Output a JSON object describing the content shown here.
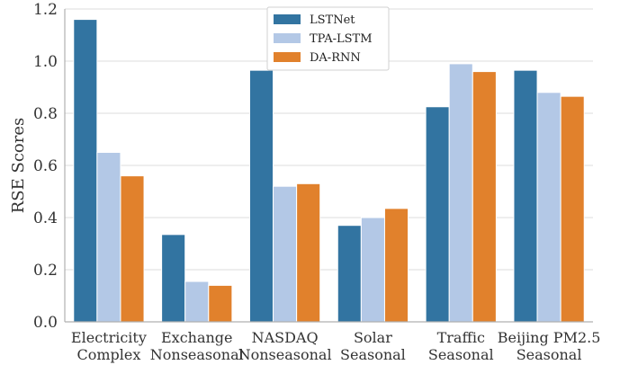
{
  "chart_data": {
    "type": "bar",
    "ylabel": "RSE Scores",
    "xlabel": "",
    "ylim": [
      0,
      1.2
    ],
    "yticks": [
      "0.0",
      "0.2",
      "0.4",
      "0.6",
      "0.8",
      "1.0",
      "1.2"
    ],
    "grid": "horizontal",
    "legend_position": "top-center",
    "categories": [
      {
        "line1": "Electricity",
        "line2": "Complex"
      },
      {
        "line1": "Exchange",
        "line2": "Nonseasonal"
      },
      {
        "line1": "NASDAQ",
        "line2": "Nonseasonal"
      },
      {
        "line1": "Solar",
        "line2": "Seasonal"
      },
      {
        "line1": "Traffic",
        "line2": "Seasonal"
      },
      {
        "line1": "Beijing PM2.5",
        "line2": "Seasonal"
      }
    ],
    "series": [
      {
        "name": "LSTNet",
        "color": "#3274a1",
        "values": [
          1.16,
          0.335,
          0.965,
          0.37,
          0.825,
          0.965
        ]
      },
      {
        "name": "TPA-LSTM",
        "color": "#b3c8e6",
        "values": [
          0.65,
          0.155,
          0.52,
          0.4,
          0.99,
          0.88
        ]
      },
      {
        "name": "DA-RNN",
        "color": "#e1812c",
        "values": [
          0.56,
          0.14,
          0.53,
          0.435,
          0.96,
          0.865
        ]
      }
    ]
  }
}
